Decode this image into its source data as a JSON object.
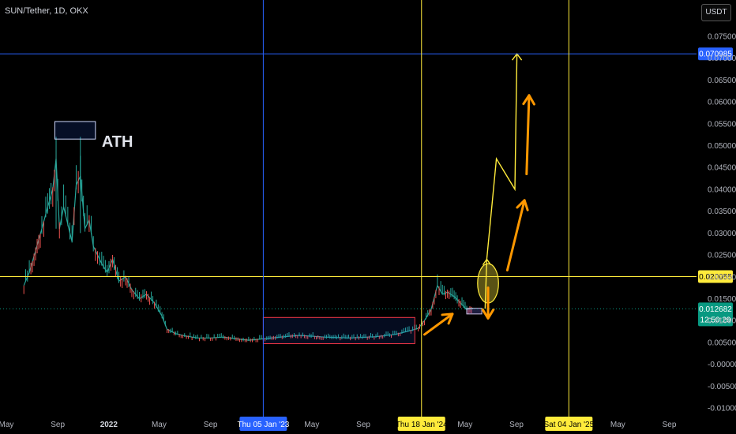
{
  "header": {
    "title": "SUN/Tether, 1D, OKX",
    "currency": "USDT"
  },
  "chart_data": {
    "type": "line",
    "title": "SUN/Tether, 1D, OKX",
    "ylim": [
      -0.012,
      0.078
    ],
    "yticks": [
      0.075,
      0.07,
      0.065,
      0.06,
      0.055,
      0.05,
      0.045,
      0.04,
      0.035,
      0.03,
      0.025,
      0.02,
      0.015,
      0.01,
      0.005,
      0.0,
      -0.005,
      -0.01
    ],
    "ytick_labels": [
      "0.075000",
      "0.070000",
      "0.065000",
      "0.060000",
      "0.055000",
      "0.050000",
      "0.045000",
      "0.040000",
      "0.035000",
      "0.030000",
      "0.025000",
      "0.020000",
      "0.015000",
      "0.010000",
      "0.005000",
      "-0.000000",
      "-0.005000",
      "-0.010000"
    ],
    "xticks": [
      {
        "label": "May",
        "x": "2021-05-01",
        "bold": false
      },
      {
        "label": "Sep",
        "x": "2021-09-01",
        "bold": false
      },
      {
        "label": "2022",
        "x": "2022-01-01",
        "bold": true
      },
      {
        "label": "May",
        "x": "2022-05-01",
        "bold": false
      },
      {
        "label": "Sep",
        "x": "2022-09-01",
        "bold": false
      },
      {
        "label": "May",
        "x": "2023-05-01",
        "bold": false
      },
      {
        "label": "Sep",
        "x": "2023-09-01",
        "bold": false
      },
      {
        "label": "May",
        "x": "2024-05-01",
        "bold": false
      },
      {
        "label": "Sep",
        "x": "2024-09-01",
        "bold": false
      },
      {
        "label": "May",
        "x": "2025-05-01",
        "bold": false
      },
      {
        "label": "Sep",
        "x": "2025-09-01",
        "bold": false
      }
    ],
    "vlines": [
      {
        "x": "2023-01-05",
        "label": "Thu 05 Jan '23",
        "color": "#2962ff",
        "text": "#ffffff"
      },
      {
        "x": "2024-01-18",
        "label": "Thu 18 Jan '24",
        "color": "#ffeb3b",
        "text": "#000000"
      },
      {
        "x": "2025-01-04",
        "label": "Sat 04 Jan '25",
        "color": "#ffeb3b",
        "text": "#000000"
      }
    ],
    "hlines": [
      {
        "y": 0.070985,
        "label": "0.070985",
        "color": "#2962ff",
        "text": "#ffffff"
      },
      {
        "y": 0.020055,
        "label": "0.020055",
        "color": "#ffeb3b",
        "text": "#000000"
      }
    ],
    "last_price": {
      "y": 0.012682,
      "label": "0.012682",
      "countdown": "12:50:29",
      "color": "#089981"
    },
    "series": [
      {
        "x": [
          "2021-06-12",
          "2021-06-25",
          "2021-07-10",
          "2021-07-25",
          "2021-08-08",
          "2021-08-20",
          "2021-08-28",
          "2021-09-05",
          "2021-09-15",
          "2021-09-25",
          "2021-10-05",
          "2021-10-15",
          "2021-10-25",
          "2021-11-05",
          "2021-11-15",
          "2021-11-25",
          "2021-12-05",
          "2021-12-15",
          "2021-12-28",
          "2022-01-10",
          "2022-01-25",
          "2022-02-10",
          "2022-02-25",
          "2022-03-15",
          "2022-04-01",
          "2022-04-20",
          "2022-05-08",
          "2022-05-20",
          "2022-06-10",
          "2022-07-01",
          "2022-08-01",
          "2022-09-01",
          "2022-10-01",
          "2022-11-01",
          "2022-12-01",
          "2023-01-05",
          "2023-02-15",
          "2023-04-01",
          "2023-06-01",
          "2023-08-01",
          "2023-10-01",
          "2023-11-15",
          "2023-12-15",
          "2024-01-10",
          "2024-01-25",
          "2024-02-10",
          "2024-02-25",
          "2024-03-08",
          "2024-03-20",
          "2024-04-05",
          "2024-04-20",
          "2024-05-05",
          "2024-05-20"
        ],
        "values": [
          0.018,
          0.021,
          0.026,
          0.031,
          0.036,
          0.04,
          0.047,
          0.031,
          0.036,
          0.032,
          0.028,
          0.041,
          0.043,
          0.031,
          0.033,
          0.027,
          0.025,
          0.023,
          0.021,
          0.024,
          0.019,
          0.02,
          0.017,
          0.015,
          0.016,
          0.014,
          0.011,
          0.008,
          0.007,
          0.0065,
          0.006,
          0.006,
          0.0062,
          0.0058,
          0.0055,
          0.0058,
          0.0062,
          0.0066,
          0.0062,
          0.006,
          0.0063,
          0.0068,
          0.0075,
          0.0082,
          0.01,
          0.0125,
          0.018,
          0.016,
          0.0165,
          0.0155,
          0.014,
          0.0125,
          0.0127
        ]
      }
    ],
    "annotations": {
      "ath_text": "ATH",
      "ath_box": {
        "x0": "2021-08-25",
        "x1": "2021-11-30",
        "y0": 0.0515,
        "y1": 0.0555
      },
      "range_box": {
        "x0": "2023-01-05",
        "x1": "2024-01-02",
        "y0": 0.0047,
        "y1": 0.0107
      },
      "circle": {
        "cx": "2024-06-25",
        "cy": 0.0185,
        "rx_days": 25,
        "ry": 0.0045
      },
      "small_box": {
        "x0": "2024-05-05",
        "x1": "2024-06-10",
        "y0": 0.0115,
        "y1": 0.0128
      },
      "yellow_path": [
        [
          "2024-06-18",
          0.0127
        ],
        [
          "2024-06-22",
          0.024
        ],
        [
          "2024-07-15",
          0.047
        ],
        [
          "2024-08-28",
          0.04
        ],
        [
          "2024-09-02",
          0.071
        ]
      ],
      "orange_arrows": [
        {
          "from": [
            "2024-01-25",
            0.0068
          ],
          "to": [
            "2024-04-01",
            0.0115
          ]
        },
        {
          "from": [
            "2024-06-25",
            0.0175
          ],
          "to": [
            "2024-06-25",
            0.0105
          ]
        },
        {
          "from": [
            "2024-08-10",
            0.0215
          ],
          "to": [
            "2024-09-20",
            0.0375
          ]
        },
        {
          "from": [
            "2024-09-25",
            0.0435
          ],
          "to": [
            "2024-10-01",
            0.0615
          ]
        }
      ]
    }
  }
}
